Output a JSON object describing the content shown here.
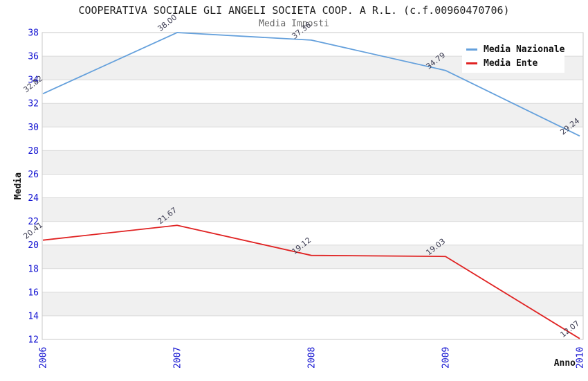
{
  "title": "COOPERATIVA SOCIALE GLI ANGELI SOCIETA COOP. A R.L. (c.f.00960470706)",
  "subtitle": "Media Imposti",
  "legend": {
    "items": [
      {
        "label": "Media Nazionale",
        "color": "#64a0dc"
      },
      {
        "label": "Media Ente",
        "color": "#e02222"
      }
    ]
  },
  "chart_data": {
    "type": "line",
    "x": [
      2006,
      2007,
      2008,
      2009,
      2010
    ],
    "series": [
      {
        "name": "Media Nazionale",
        "color": "#64a0dc",
        "values": [
          32.82,
          38.0,
          37.36,
          34.79,
          29.24
        ]
      },
      {
        "name": "Media Ente",
        "color": "#e02222",
        "values": [
          20.41,
          21.67,
          19.12,
          19.03,
          12.07
        ]
      }
    ],
    "title": "Media Imposti",
    "xlabel": "Anno",
    "ylabel": "Media",
    "ylim": [
      12,
      38
    ],
    "ytick_step": 2,
    "grid": true,
    "legend_position": "top-right",
    "band_colors": [
      "#ffffff",
      "#f0f0f0"
    ],
    "gridline_color": "#d9d9d9",
    "border_color": "#c9c9c9",
    "axis_tick_color": "#0f0fd0",
    "point_label_color": "#3c3c52"
  }
}
